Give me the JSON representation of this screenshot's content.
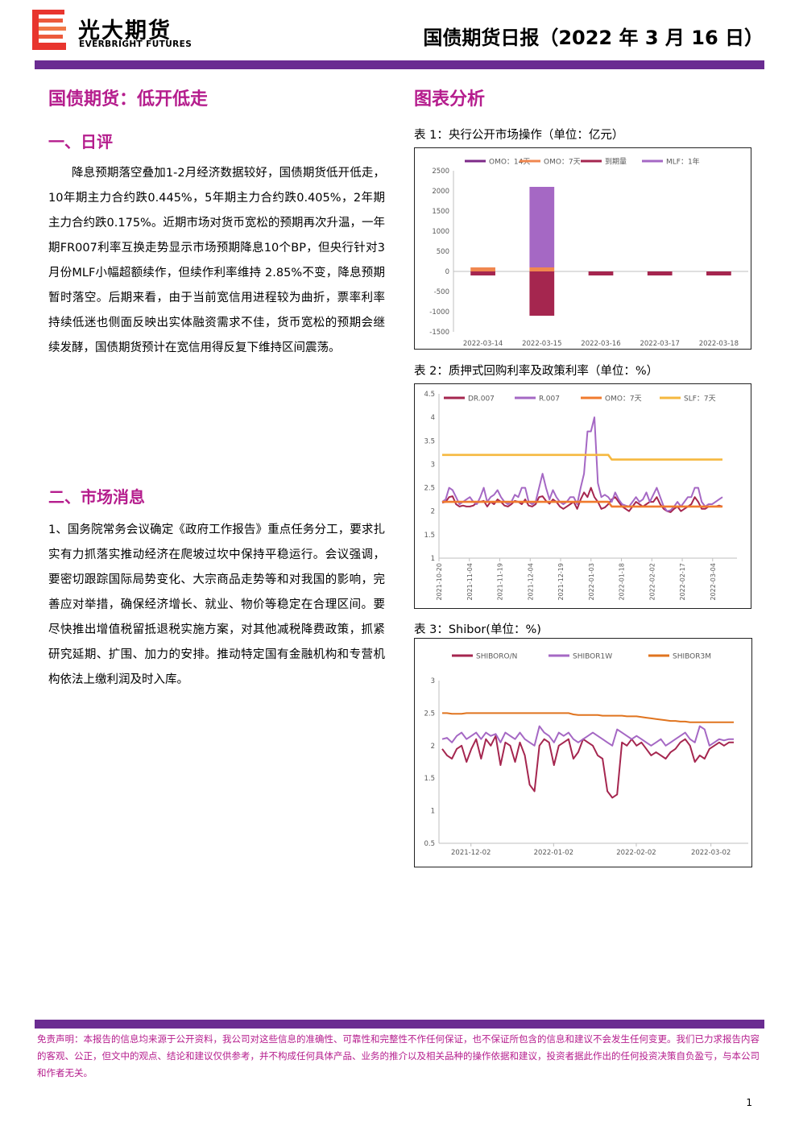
{
  "header": {
    "company_cn": "光大期货",
    "company_en": "EVERBRIGHT FUTURES",
    "report_title": "国债期货日报（2022 年 3 月 16 日）"
  },
  "main": {
    "title": "国债期货：低开低走",
    "section1": {
      "heading": "一、日评",
      "paragraph": "降息预期落空叠加1-2月经济数据较好，国债期货低开低走，10年期主力合约跌0.445%，5年期主力合约跌0.405%，2年期主力合约跌0.175%。近期市场对货币宽松的预期再次升温，一年期FR007利率互换走势显示市场预期降息10个BP，但央行针对3月份MLF小幅超额续作，但续作利率维持 2.85%不变，降息预期暂时落空。后期来看，由于当前宽信用进程较为曲折，票率利率持续低迷也侧面反映出实体融资需求不佳，货币宽松的预期会继续发酵，国债期货预计在宽信用得反复下维持区间震荡。"
    },
    "section2": {
      "heading": "二、市场消息",
      "paragraph": "1、国务院常务会议确定《政府工作报告》重点任务分工，要求扎实有力抓落实推动经济在爬坡过坎中保持平稳运行。会议强调，要密切跟踪国际局势变化、大宗商品走势等和对我国的影响，完善应对举措，确保经济增长、就业、物价等稳定在合理区间。要尽快推出增值税留抵退税实施方案，对其他减税降费政策，抓紧研究延期、扩围、加力的安排。推动特定国有金融机构和专营机构依法上缴利润及时入库。"
    }
  },
  "right": {
    "title": "图表分析"
  },
  "chart_data": [
    {
      "type": "bar",
      "caption": "表 1：央行公开市场操作（单位：亿元）",
      "stacked": true,
      "categories": [
        "2022-03-14",
        "2022-03-15",
        "2022-03-16",
        "2022-03-17",
        "2022-03-18"
      ],
      "series": [
        {
          "name": "OMO：14天",
          "color": "#7d2a88",
          "values": [
            0,
            0,
            0,
            0,
            0
          ]
        },
        {
          "name": "OMO：7天",
          "color": "#f0874f",
          "values": [
            100,
            100,
            0,
            0,
            0
          ]
        },
        {
          "name": "到期量",
          "color": "#a5264f",
          "values": [
            -100,
            -1100,
            -100,
            -100,
            -100
          ]
        },
        {
          "name": "MLF：1年",
          "color": "#a568c4",
          "values": [
            0,
            2000,
            0,
            0,
            0
          ]
        }
      ],
      "yticks": [
        2500,
        2000,
        1500,
        1000,
        500,
        0,
        -500,
        -1000,
        -1500
      ],
      "ylim": [
        -1500,
        2500
      ],
      "legend": "top"
    },
    {
      "type": "line",
      "caption": "表 2：质押式回购利率及政策利率（单位：%）",
      "x_ticks": [
        "2021-10-20",
        "2021-11-04",
        "2021-11-19",
        "2021-12-04",
        "2021-12-19",
        "2022-01-03",
        "2022-01-18",
        "2022-02-02",
        "2022-02-17",
        "2022-03-04"
      ],
      "x_range": [
        "2021-10-20",
        "2022-03-16"
      ],
      "series": [
        {
          "name": "DR.007",
          "color": "#a5264f",
          "values": [
            2.18,
            2.2,
            2.3,
            2.32,
            2.15,
            2.1,
            2.12,
            2.1,
            2.1,
            2.12,
            2.18,
            2.2,
            2.22,
            2.1,
            2.2,
            2.15,
            2.25,
            2.2,
            2.12,
            2.1,
            2.15,
            2.22,
            2.2,
            2.15,
            2.25,
            2.12,
            2.1,
            2.15,
            2.3,
            2.32,
            2.22,
            2.16,
            2.25,
            2.2,
            2.1,
            2.05,
            2.1,
            2.15,
            2.2,
            2.05,
            2.25,
            2.4,
            2.3,
            2.5,
            2.3,
            2.2,
            2.05,
            2.08,
            2.15,
            2.25,
            2.3,
            2.2,
            2.1,
            2.05,
            2.0,
            2.1,
            2.2,
            2.15,
            2.1,
            2.15,
            2.2,
            2.2,
            2.3,
            2.15,
            2.05,
            2.0,
            1.98,
            2.05,
            2.1,
            2.0,
            2.05,
            2.1,
            2.15,
            2.3,
            2.2,
            2.05,
            2.05,
            2.1,
            2.1,
            2.1,
            2.12,
            2.1
          ]
        },
        {
          "name": "R.007",
          "color": "#a568c4",
          "values": [
            2.2,
            2.25,
            2.5,
            2.45,
            2.3,
            2.15,
            2.2,
            2.25,
            2.3,
            2.2,
            2.15,
            2.3,
            2.5,
            2.2,
            2.3,
            2.35,
            2.45,
            2.3,
            2.2,
            2.15,
            2.2,
            2.35,
            2.3,
            2.5,
            2.5,
            2.2,
            2.15,
            2.2,
            2.5,
            2.8,
            2.5,
            2.25,
            2.45,
            2.3,
            2.2,
            2.15,
            2.2,
            2.3,
            2.3,
            2.15,
            2.5,
            2.8,
            3.7,
            3.7,
            4.0,
            2.6,
            2.3,
            2.35,
            2.3,
            2.2,
            2.4,
            2.25,
            2.15,
            2.12,
            2.1,
            2.2,
            2.3,
            2.2,
            2.25,
            2.4,
            2.2,
            2.35,
            2.5,
            2.3,
            2.1,
            2.0,
            2.02,
            2.1,
            2.2,
            2.1,
            2.2,
            2.3,
            2.3,
            2.5,
            2.5,
            2.2,
            2.1,
            2.15,
            2.15,
            2.2,
            2.25,
            2.3
          ]
        },
        {
          "name": "OMO：7天",
          "color": "#f07b2e",
          "values": [
            2.2,
            2.2,
            2.2,
            2.2,
            2.2,
            2.2,
            2.2,
            2.2,
            2.2,
            2.2,
            2.2,
            2.2,
            2.2,
            2.2,
            2.2,
            2.2,
            2.2,
            2.2,
            2.2,
            2.2,
            2.2,
            2.2,
            2.2,
            2.2,
            2.2,
            2.2,
            2.2,
            2.2,
            2.2,
            2.2,
            2.2,
            2.2,
            2.2,
            2.2,
            2.2,
            2.2,
            2.2,
            2.2,
            2.2,
            2.2,
            2.2,
            2.2,
            2.2,
            2.2,
            2.2,
            2.2,
            2.2,
            2.2,
            2.2,
            2.1,
            2.1,
            2.1,
            2.1,
            2.1,
            2.1,
            2.1,
            2.1,
            2.1,
            2.1,
            2.1,
            2.1,
            2.1,
            2.1,
            2.1,
            2.1,
            2.1,
            2.1,
            2.1,
            2.1,
            2.1,
            2.1,
            2.1,
            2.1,
            2.1,
            2.1,
            2.1,
            2.1,
            2.1,
            2.1,
            2.1,
            2.1,
            2.1
          ]
        },
        {
          "name": "SLF：7天",
          "color": "#f5b83f",
          "values": [
            3.2,
            3.2,
            3.2,
            3.2,
            3.2,
            3.2,
            3.2,
            3.2,
            3.2,
            3.2,
            3.2,
            3.2,
            3.2,
            3.2,
            3.2,
            3.2,
            3.2,
            3.2,
            3.2,
            3.2,
            3.2,
            3.2,
            3.2,
            3.2,
            3.2,
            3.2,
            3.2,
            3.2,
            3.2,
            3.2,
            3.2,
            3.2,
            3.2,
            3.2,
            3.2,
            3.2,
            3.2,
            3.2,
            3.2,
            3.2,
            3.2,
            3.2,
            3.2,
            3.2,
            3.2,
            3.2,
            3.2,
            3.2,
            3.2,
            3.1,
            3.1,
            3.1,
            3.1,
            3.1,
            3.1,
            3.1,
            3.1,
            3.1,
            3.1,
            3.1,
            3.1,
            3.1,
            3.1,
            3.1,
            3.1,
            3.1,
            3.1,
            3.1,
            3.1,
            3.1,
            3.1,
            3.1,
            3.1,
            3.1,
            3.1,
            3.1,
            3.1,
            3.1,
            3.1,
            3.1,
            3.1,
            3.1
          ]
        }
      ],
      "yticks": [
        4.5,
        4,
        3.5,
        3,
        2.5,
        2,
        1.5,
        1
      ],
      "ylim": [
        1,
        4.5
      ],
      "legend": "top"
    },
    {
      "type": "line",
      "caption": "表 3：Shibor(单位：%)",
      "x_ticks": [
        "2021-12-02",
        "2022-01-02",
        "2022-02-02",
        "2022-03-02"
      ],
      "x_range": [
        "2021-11-20",
        "2022-03-16"
      ],
      "series": [
        {
          "name": "SHIBORO/N",
          "color": "#a5264f",
          "values": [
            1.95,
            1.85,
            1.8,
            1.95,
            2.0,
            1.75,
            1.95,
            2.1,
            1.8,
            2.1,
            2.0,
            2.15,
            1.7,
            2.05,
            2.0,
            1.75,
            2.05,
            1.85,
            1.4,
            1.3,
            2.0,
            2.1,
            2.05,
            1.7,
            2.0,
            2.05,
            2.1,
            1.8,
            1.9,
            2.1,
            2.05,
            2.0,
            1.85,
            1.8,
            1.3,
            1.2,
            1.25,
            2.05,
            2.0,
            2.1,
            2.0,
            2.05,
            1.95,
            1.85,
            1.9,
            1.85,
            1.8,
            1.9,
            1.95,
            2.05,
            2.1,
            2.0,
            1.75,
            1.85,
            1.8,
            1.95,
            2.0,
            2.05,
            2.0,
            2.05,
            2.05
          ]
        },
        {
          "name": "SHIBOR1W",
          "color": "#a568c4",
          "values": [
            2.1,
            2.12,
            2.05,
            2.15,
            2.2,
            2.1,
            2.15,
            2.2,
            2.1,
            2.2,
            2.15,
            2.18,
            2.05,
            2.2,
            2.15,
            2.1,
            2.2,
            2.1,
            2.05,
            2.0,
            2.3,
            2.2,
            2.15,
            2.05,
            2.2,
            2.15,
            2.2,
            2.1,
            2.05,
            2.1,
            2.15,
            2.2,
            2.15,
            2.1,
            2.05,
            2.0,
            2.25,
            2.2,
            2.15,
            2.1,
            2.15,
            2.1,
            2.05,
            2.0,
            2.05,
            2.1,
            2.0,
            2.05,
            2.1,
            2.15,
            2.2,
            2.1,
            2.05,
            2.3,
            2.25,
            2.0,
            2.05,
            2.1,
            2.08,
            2.1,
            2.1
          ]
        },
        {
          "name": "SHIBOR3M",
          "color": "#e0741f",
          "values": [
            2.5,
            2.5,
            2.49,
            2.49,
            2.49,
            2.5,
            2.5,
            2.5,
            2.5,
            2.5,
            2.5,
            2.5,
            2.5,
            2.5,
            2.5,
            2.5,
            2.5,
            2.5,
            2.5,
            2.5,
            2.5,
            2.5,
            2.5,
            2.5,
            2.5,
            2.5,
            2.5,
            2.48,
            2.47,
            2.47,
            2.47,
            2.47,
            2.47,
            2.46,
            2.46,
            2.46,
            2.46,
            2.46,
            2.45,
            2.45,
            2.45,
            2.44,
            2.43,
            2.42,
            2.41,
            2.4,
            2.39,
            2.38,
            2.38,
            2.37,
            2.37,
            2.36,
            2.36,
            2.36,
            2.36,
            2.36,
            2.36,
            2.36,
            2.36,
            2.36,
            2.36
          ]
        }
      ],
      "yticks": [
        3,
        2.5,
        2,
        1.5,
        1,
        0.5
      ],
      "ylim": [
        0.5,
        3
      ],
      "legend": "top"
    }
  ],
  "footer": {
    "disclaimer": "免责声明：本报告的信息均来源于公开资料，我公司对这些信息的准确性、可靠性和完整性不作任何保证，也不保证所包含的信息和建议不会发生任何变更。我们已力求报告内容的客观、公正，但文中的观点、结论和建议仅供参考，并不构成任何具体产品、业务的推介以及相关品种的操作依据和建议，投资者据此作出的任何投资决策自负盈亏，与本公司和作者无关。",
    "page_number": "1"
  },
  "colors": {
    "brand_purple": "#6a2c91",
    "heading_magenta": "#b51d8d",
    "logo_red": "#e8352e"
  }
}
